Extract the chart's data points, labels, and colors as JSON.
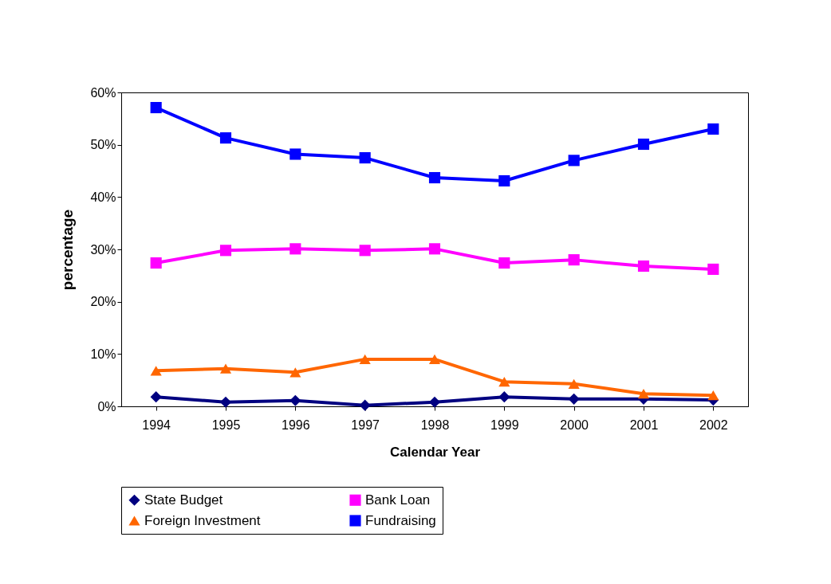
{
  "chart_data": {
    "type": "line",
    "xlabel": "Calendar Year",
    "ylabel": "percentage",
    "categories": [
      "1994",
      "1995",
      "1996",
      "1997",
      "1998",
      "1999",
      "2000",
      "2001",
      "2002"
    ],
    "ylim": [
      0,
      60
    ],
    "yticks": [
      {
        "value": 0,
        "label": "0%"
      },
      {
        "value": 10,
        "label": "10%"
      },
      {
        "value": 20,
        "label": "20%"
      },
      {
        "value": 30,
        "label": "30%"
      },
      {
        "value": 40,
        "label": "40%"
      },
      {
        "value": 50,
        "label": "50%"
      },
      {
        "value": 60,
        "label": "60%"
      }
    ],
    "grid": false,
    "legend": "bottom",
    "series": [
      {
        "name": "State Budget",
        "color": "#000080",
        "marker": "diamond",
        "values": [
          1.8,
          0.8,
          1.1,
          0.2,
          0.8,
          1.8,
          1.4,
          1.4,
          1.2
        ]
      },
      {
        "name": "Bank Loan",
        "color": "#ff00ff",
        "marker": "square",
        "values": [
          27.4,
          29.8,
          30.1,
          29.8,
          30.1,
          27.4,
          28.0,
          26.8,
          26.2
        ]
      },
      {
        "name": "Foreign Investment",
        "color": "#ff6600",
        "marker": "triangle",
        "values": [
          6.8,
          7.2,
          6.5,
          9.0,
          9.0,
          4.7,
          4.3,
          2.4,
          2.1
        ]
      },
      {
        "name": "Fundraising",
        "color": "#0000ff",
        "marker": "square",
        "values": [
          57.1,
          51.3,
          48.2,
          47.5,
          43.7,
          43.1,
          47.0,
          50.1,
          53.0
        ]
      }
    ]
  }
}
